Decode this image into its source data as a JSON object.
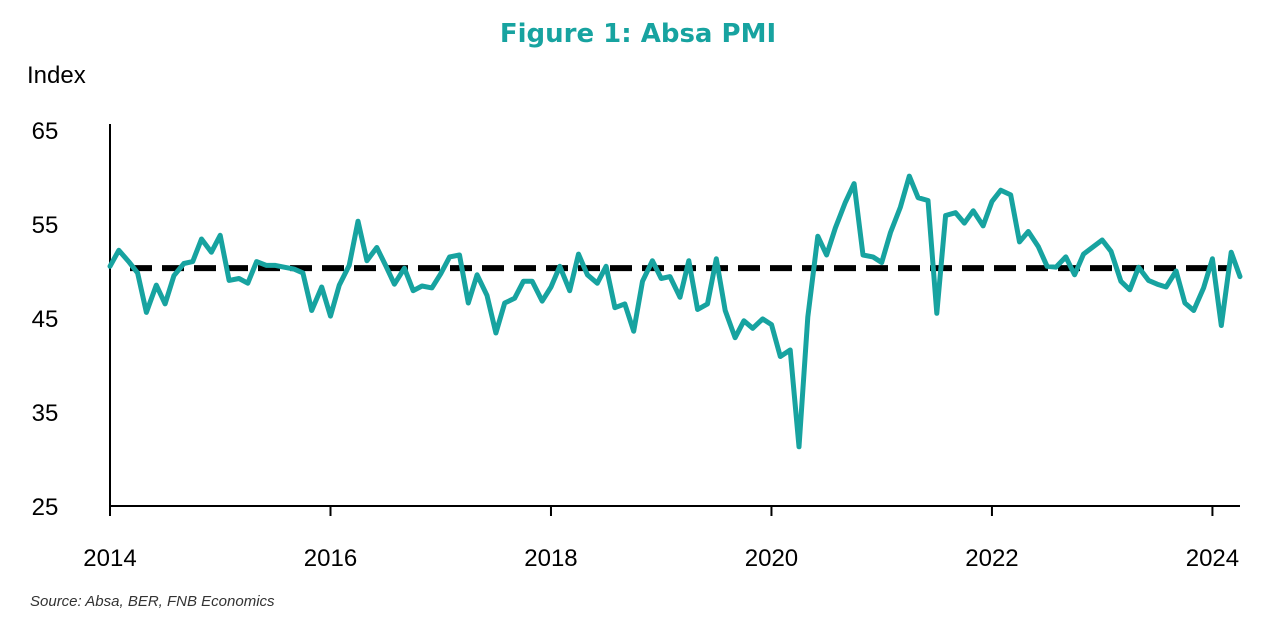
{
  "chart_data": {
    "type": "line",
    "title": "Figure 1: Absa PMI",
    "ylabel": "Index",
    "source": "Source: Absa, BER, FNB Economics",
    "ylim": [
      25,
      65
    ],
    "yticks": [
      "65",
      "55",
      "45",
      "35",
      "25"
    ],
    "ytick_values": [
      65,
      55,
      45,
      35,
      25
    ],
    "xlim": [
      2014.0,
      2024.25
    ],
    "xticks": [
      "2014",
      "2016",
      "2018",
      "2020",
      "2022",
      "2024"
    ],
    "xtick_values": [
      2014,
      2016,
      2018,
      2020,
      2022,
      2024
    ],
    "grid": false,
    "colors": {
      "title": "#17A3A0",
      "series": "#17A3A0",
      "reference": "#000000"
    },
    "series": [
      {
        "type": "line",
        "x": [
          2014.0,
          2014.08,
          2014.17,
          2014.25,
          2014.33,
          2014.42,
          2014.5,
          2014.58,
          2014.67,
          2014.75,
          2014.83,
          2014.92,
          2015.0,
          2015.08,
          2015.17,
          2015.25,
          2015.33,
          2015.42,
          2015.5,
          2015.58,
          2015.67,
          2015.75,
          2015.83,
          2015.92,
          2016.0,
          2016.08,
          2016.17,
          2016.25,
          2016.33,
          2016.42,
          2016.5,
          2016.58,
          2016.67,
          2016.75,
          2016.83,
          2016.92,
          2017.0,
          2017.08,
          2017.17,
          2017.25,
          2017.33,
          2017.42,
          2017.5,
          2017.58,
          2017.67,
          2017.75,
          2017.83,
          2017.92,
          2018.0,
          2018.08,
          2018.17,
          2018.25,
          2018.33,
          2018.42,
          2018.5,
          2018.58,
          2018.67,
          2018.75,
          2018.83,
          2018.92,
          2019.0,
          2019.08,
          2019.17,
          2019.25,
          2019.33,
          2019.42,
          2019.5,
          2019.58,
          2019.67,
          2019.75,
          2019.83,
          2019.92,
          2020.0,
          2020.08,
          2020.17,
          2020.25,
          2020.33,
          2020.42,
          2020.5,
          2020.58,
          2020.67,
          2020.75,
          2020.83,
          2020.92,
          2021.0,
          2021.08,
          2021.17,
          2021.25,
          2021.33,
          2021.42,
          2021.5,
          2021.58,
          2021.67,
          2021.75,
          2021.83,
          2021.92,
          2022.0,
          2022.08,
          2022.17,
          2022.25,
          2022.33,
          2022.42,
          2022.5,
          2022.58,
          2022.67,
          2022.75,
          2022.83,
          2022.92,
          2023.0,
          2023.08,
          2023.17,
          2023.25,
          2023.33,
          2023.42,
          2023.5,
          2023.58,
          2023.67,
          2023.75,
          2023.83,
          2023.92,
          2024.0,
          2024.08,
          2024.17,
          2024.25
        ],
        "y": [
          50.5,
          52.2,
          51.0,
          49.8,
          45.6,
          48.5,
          46.5,
          49.5,
          50.8,
          51.0,
          53.4,
          52.0,
          53.8,
          49.0,
          49.2,
          48.7,
          51.0,
          50.6,
          50.6,
          50.4,
          50.2,
          49.8,
          45.8,
          48.3,
          45.2,
          48.5,
          50.6,
          55.3,
          51.1,
          52.5,
          50.6,
          48.6,
          50.3,
          47.9,
          48.4,
          48.2,
          49.7,
          51.5,
          51.7,
          46.6,
          49.6,
          47.4,
          43.4,
          46.6,
          47.1,
          48.9,
          48.9,
          46.8,
          48.3,
          50.5,
          47.9,
          51.8,
          49.6,
          48.7,
          50.5,
          46.1,
          46.5,
          43.6,
          48.9,
          51.1,
          49.2,
          49.4,
          47.2,
          51.1,
          45.9,
          46.5,
          51.3,
          45.8,
          42.9,
          44.7,
          43.9,
          44.9,
          44.3,
          40.9,
          41.6,
          31.3,
          45.1,
          53.7,
          51.7,
          54.6,
          57.3,
          59.3,
          51.7,
          51.5,
          50.9,
          54.1,
          56.8,
          60.1,
          57.8,
          57.5,
          45.5,
          55.9,
          56.2,
          55.1,
          56.4,
          54.8,
          57.4,
          58.6,
          58.1,
          53.1,
          54.2,
          52.6,
          50.5,
          50.4,
          51.5,
          49.6,
          51.8,
          52.6,
          53.3,
          52.1,
          48.9,
          48.0,
          50.4,
          49.0,
          48.6,
          48.3,
          50.0,
          46.6,
          45.8,
          48.2,
          51.3,
          44.2,
          52.0,
          49.4
        ]
      },
      {
        "type": "reference",
        "value": 50.3
      }
    ]
  }
}
